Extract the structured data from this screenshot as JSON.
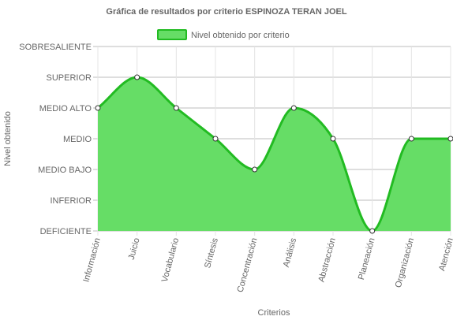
{
  "chart_data": {
    "type": "area",
    "title": "Gráfica de resultados por criterio ESPINOZA TERAN JOEL",
    "xlabel": "Criterios",
    "ylabel": "Nivel obtenido",
    "categories": [
      "Información",
      "Juicio",
      "Vocabulario",
      "Síntesis",
      "Concentración",
      "Análisis",
      "Abstracción",
      "Planeación",
      "Organización",
      "Atención"
    ],
    "y_levels": [
      "DEFICIENTE",
      "INFERIOR",
      "MEDIO BAJO",
      "MEDIO",
      "MEDIO ALTO",
      "SUPERIOR",
      "SOBRESALIENTE"
    ],
    "ylim": [
      0,
      6
    ],
    "series": [
      {
        "name": "Nivel obtenido por criterio",
        "values": [
          4,
          5,
          4,
          3,
          2,
          4,
          3,
          0,
          3,
          3
        ],
        "color": "#22bb22",
        "fill": "#66dd66"
      }
    ],
    "grid": true,
    "legend_position": "top"
  }
}
